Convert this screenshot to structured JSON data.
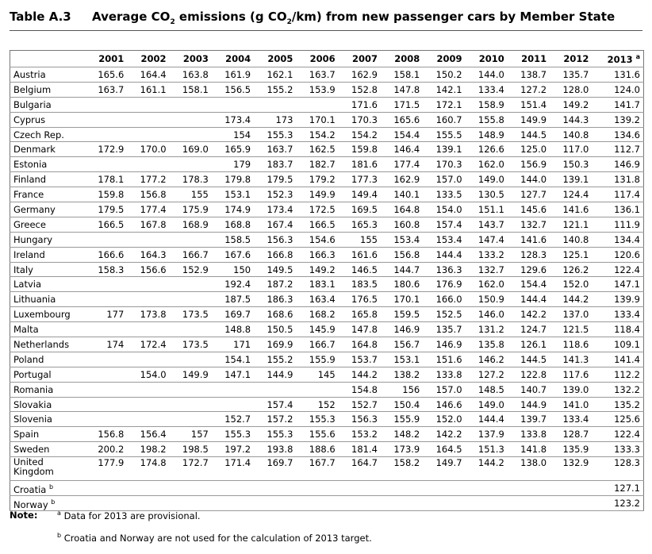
{
  "header": {
    "label": "Table A.3",
    "title_parts": [
      "Average CO",
      "2",
      " emissions (g CO",
      "2",
      "/km) from new passenger cars by Member State"
    ]
  },
  "table": {
    "columns": [
      {
        "year": "2001"
      },
      {
        "year": "2002"
      },
      {
        "year": "2003"
      },
      {
        "year": "2004"
      },
      {
        "year": "2005"
      },
      {
        "year": "2006"
      },
      {
        "year": "2007"
      },
      {
        "year": "2008"
      },
      {
        "year": "2009"
      },
      {
        "year": "2010"
      },
      {
        "year": "2011"
      },
      {
        "year": "2012"
      },
      {
        "year": "2013",
        "mark": "a"
      }
    ],
    "rows": [
      {
        "name": "Austria",
        "values": [
          "165.6",
          "164.4",
          "163.8",
          "161.9",
          "162.1",
          "163.7",
          "162.9",
          "158.1",
          "150.2",
          "144.0",
          "138.7",
          "135.7",
          "131.6"
        ]
      },
      {
        "name": "Belgium",
        "values": [
          "163.7",
          "161.1",
          "158.1",
          "156.5",
          "155.2",
          "153.9",
          "152.8",
          "147.8",
          "142.1",
          "133.4",
          "127.2",
          "128.0",
          "124.0"
        ]
      },
      {
        "name": "Bulgaria",
        "values": [
          null,
          null,
          null,
          null,
          null,
          null,
          "171.6",
          "171.5",
          "172.1",
          "158.9",
          "151.4",
          "149.2",
          "141.7"
        ]
      },
      {
        "name": "Cyprus",
        "values": [
          null,
          null,
          null,
          "173.4",
          "173",
          "170.1",
          "170.3",
          "165.6",
          "160.7",
          "155.8",
          "149.9",
          "144.3",
          "139.2"
        ]
      },
      {
        "name": "Czech Rep.",
        "values": [
          null,
          null,
          null,
          "154",
          "155.3",
          "154.2",
          "154.2",
          "154.4",
          "155.5",
          "148.9",
          "144.5",
          "140.8",
          "134.6"
        ]
      },
      {
        "name": "Denmark",
        "values": [
          "172.9",
          "170.0",
          "169.0",
          "165.9",
          "163.7",
          "162.5",
          "159.8",
          "146.4",
          "139.1",
          "126.6",
          "125.0",
          "117.0",
          "112.7"
        ]
      },
      {
        "name": "Estonia",
        "values": [
          null,
          null,
          null,
          "179",
          "183.7",
          "182.7",
          "181.6",
          "177.4",
          "170.3",
          "162.0",
          "156.9",
          "150.3",
          "146.9"
        ]
      },
      {
        "name": "Finland",
        "values": [
          "178.1",
          "177.2",
          "178.3",
          "179.8",
          "179.5",
          "179.2",
          "177.3",
          "162.9",
          "157.0",
          "149.0",
          "144.0",
          "139.1",
          "131.8"
        ]
      },
      {
        "name": "France",
        "values": [
          "159.8",
          "156.8",
          "155",
          "153.1",
          "152.3",
          "149.9",
          "149.4",
          "140.1",
          "133.5",
          "130.5",
          "127.7",
          "124.4",
          "117.4"
        ]
      },
      {
        "name": "Germany",
        "values": [
          "179.5",
          "177.4",
          "175.9",
          "174.9",
          "173.4",
          "172.5",
          "169.5",
          "164.8",
          "154.0",
          "151.1",
          "145.6",
          "141.6",
          "136.1"
        ]
      },
      {
        "name": "Greece",
        "values": [
          "166.5",
          "167.8",
          "168.9",
          "168.8",
          "167.4",
          "166.5",
          "165.3",
          "160.8",
          "157.4",
          "143.7",
          "132.7",
          "121.1",
          "111.9"
        ]
      },
      {
        "name": "Hungary",
        "values": [
          null,
          null,
          null,
          "158.5",
          "156.3",
          "154.6",
          "155",
          "153.4",
          "153.4",
          "147.4",
          "141.6",
          "140.8",
          "134.4"
        ]
      },
      {
        "name": "Ireland",
        "values": [
          "166.6",
          "164.3",
          "166.7",
          "167.6",
          "166.8",
          "166.3",
          "161.6",
          "156.8",
          "144.4",
          "133.2",
          "128.3",
          "125.1",
          "120.6"
        ]
      },
      {
        "name": "Italy",
        "values": [
          "158.3",
          "156.6",
          "152.9",
          "150",
          "149.5",
          "149.2",
          "146.5",
          "144.7",
          "136.3",
          "132.7",
          "129.6",
          "126.2",
          "122.4"
        ]
      },
      {
        "name": "Latvia",
        "values": [
          null,
          null,
          null,
          "192.4",
          "187.2",
          "183.1",
          "183.5",
          "180.6",
          "176.9",
          "162.0",
          "154.4",
          "152.0",
          "147.1"
        ]
      },
      {
        "name": "Lithuania",
        "values": [
          null,
          null,
          null,
          "187.5",
          "186.3",
          "163.4",
          "176.5",
          "170.1",
          "166.0",
          "150.9",
          "144.4",
          "144.2",
          "139.9"
        ]
      },
      {
        "name": "Luxembourg",
        "values": [
          "177",
          "173.8",
          "173.5",
          "169.7",
          "168.6",
          "168.2",
          "165.8",
          "159.5",
          "152.5",
          "146.0",
          "142.2",
          "137.0",
          "133.4"
        ]
      },
      {
        "name": "Malta",
        "values": [
          null,
          null,
          null,
          "148.8",
          "150.5",
          "145.9",
          "147.8",
          "146.9",
          "135.7",
          "131.2",
          "124.7",
          "121.5",
          "118.4"
        ]
      },
      {
        "name": "Netherlands",
        "values": [
          "174",
          "172.4",
          "173.5",
          "171",
          "169.9",
          "166.7",
          "164.8",
          "156.7",
          "146.9",
          "135.8",
          "126.1",
          "118.6",
          "109.1"
        ]
      },
      {
        "name": "Poland",
        "values": [
          null,
          null,
          null,
          "154.1",
          "155.2",
          "155.9",
          "153.7",
          "153.1",
          "151.6",
          "146.2",
          "144.5",
          "141.3",
          "141.4"
        ]
      },
      {
        "name": "Portugal",
        "values": [
          null,
          "154.0",
          "149.9",
          "147.1",
          "144.9",
          "145",
          "144.2",
          "138.2",
          "133.8",
          "127.2",
          "122.8",
          "117.6",
          "112.2"
        ]
      },
      {
        "name": "Romania",
        "values": [
          null,
          null,
          null,
          null,
          null,
          null,
          "154.8",
          "156",
          "157.0",
          "148.5",
          "140.7",
          "139.0",
          "132.2"
        ]
      },
      {
        "name": "Slovakia",
        "values": [
          null,
          null,
          null,
          null,
          "157.4",
          "152",
          "152.7",
          "150.4",
          "146.6",
          "149.0",
          "144.9",
          "141.0",
          "135.2"
        ]
      },
      {
        "name": "Slovenia",
        "values": [
          null,
          null,
          null,
          "152.7",
          "157.2",
          "155.3",
          "156.3",
          "155.9",
          "152.0",
          "144.4",
          "139.7",
          "133.4",
          "125.6"
        ]
      },
      {
        "name": "Spain",
        "values": [
          "156.8",
          "156.4",
          "157",
          "155.3",
          "155.3",
          "155.6",
          "153.2",
          "148.2",
          "142.2",
          "137.9",
          "133.8",
          "128.7",
          "122.4"
        ]
      },
      {
        "name": "Sweden",
        "values": [
          "200.2",
          "198.2",
          "198.5",
          "197.2",
          "193.8",
          "188.6",
          "181.4",
          "173.9",
          "164.5",
          "151.3",
          "141.8",
          "135.9",
          "133.3"
        ]
      },
      {
        "name": "United Kingdom",
        "values": [
          "177.9",
          "174.8",
          "172.7",
          "171.4",
          "169.7",
          "167.7",
          "164.7",
          "158.2",
          "149.7",
          "144.2",
          "138.0",
          "132.9",
          "128.3"
        ]
      },
      {
        "name": "Croatia",
        "mark": "b",
        "values": [
          null,
          null,
          null,
          null,
          null,
          null,
          null,
          null,
          null,
          null,
          null,
          null,
          "127.1"
        ]
      },
      {
        "name": "Norway",
        "mark": "b",
        "values": [
          null,
          null,
          null,
          null,
          null,
          null,
          null,
          null,
          null,
          null,
          null,
          null,
          "123.2"
        ]
      }
    ]
  },
  "notes": {
    "label": "Note:",
    "items": [
      {
        "mark": "a",
        "text": "Data for 2013 are provisional."
      },
      {
        "mark": "b",
        "text": "Croatia and Norway are not used for the calculation of 2013 target."
      }
    ]
  }
}
